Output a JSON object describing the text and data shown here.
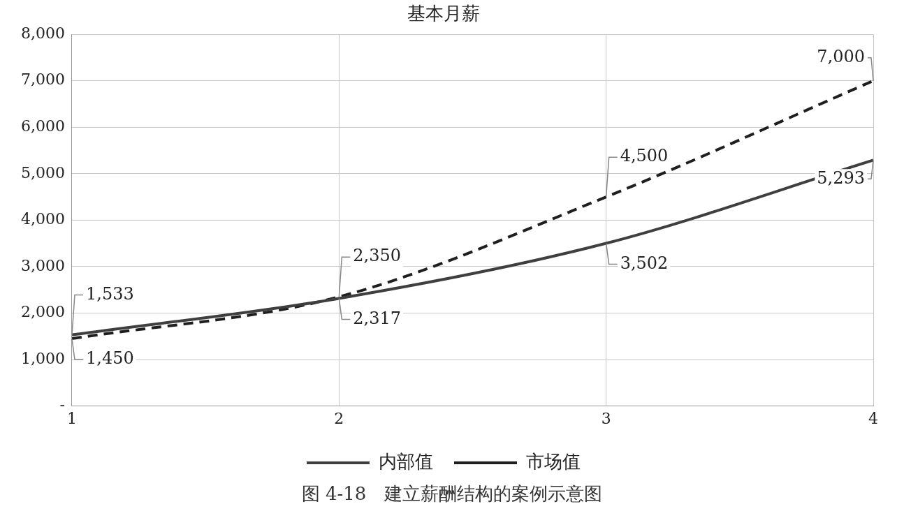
{
  "chart_data": {
    "type": "line",
    "title": "基本月薪",
    "x": [
      1,
      2,
      3,
      4
    ],
    "series": [
      {
        "name": "内部值",
        "color": "#3f3f3f",
        "values": [
          1533,
          2317,
          3502,
          5293
        ],
        "value_labels": [
          "1,533",
          "2,317",
          "3,502",
          "5,293"
        ],
        "line_style": "solid"
      },
      {
        "name": "市场值",
        "color": "#1f1f1f",
        "values": [
          1450,
          2350,
          4500,
          7000
        ],
        "value_labels": [
          "1,450",
          "2,350",
          "4,500",
          "7,000"
        ],
        "line_style": "dashed"
      }
    ],
    "xlim": [
      1,
      4
    ],
    "xticks": [
      1,
      2,
      3,
      4
    ],
    "ylim": [
      0,
      8000
    ],
    "yticks": [
      {
        "value": 0,
        "label": "-"
      },
      {
        "value": 1000,
        "label": "1,000"
      },
      {
        "value": 2000,
        "label": "2,000"
      },
      {
        "value": 3000,
        "label": "3,000"
      },
      {
        "value": 4000,
        "label": "4,000"
      },
      {
        "value": 5000,
        "label": "5,000"
      },
      {
        "value": 6000,
        "label": "6,000"
      },
      {
        "value": 7000,
        "label": "7,000"
      },
      {
        "value": 8000,
        "label": "8,000"
      }
    ],
    "grid": true,
    "legend": "bottom",
    "marker": "none",
    "annotations": [
      "图 4-18　建立薪酬结构的案例示意图"
    ]
  }
}
